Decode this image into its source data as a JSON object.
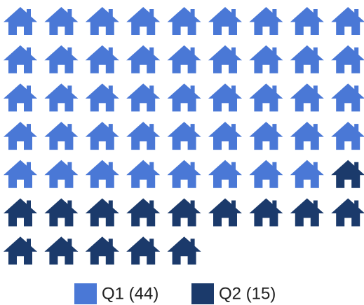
{
  "chart_data": {
    "type": "pictograph",
    "legend_labels": [
      "Q1 (44)",
      "Q2 (15)"
    ],
    "values": [
      44,
      15
    ],
    "colors": [
      "#4a78d6",
      "#1b3a6b"
    ],
    "columns": 9
  }
}
